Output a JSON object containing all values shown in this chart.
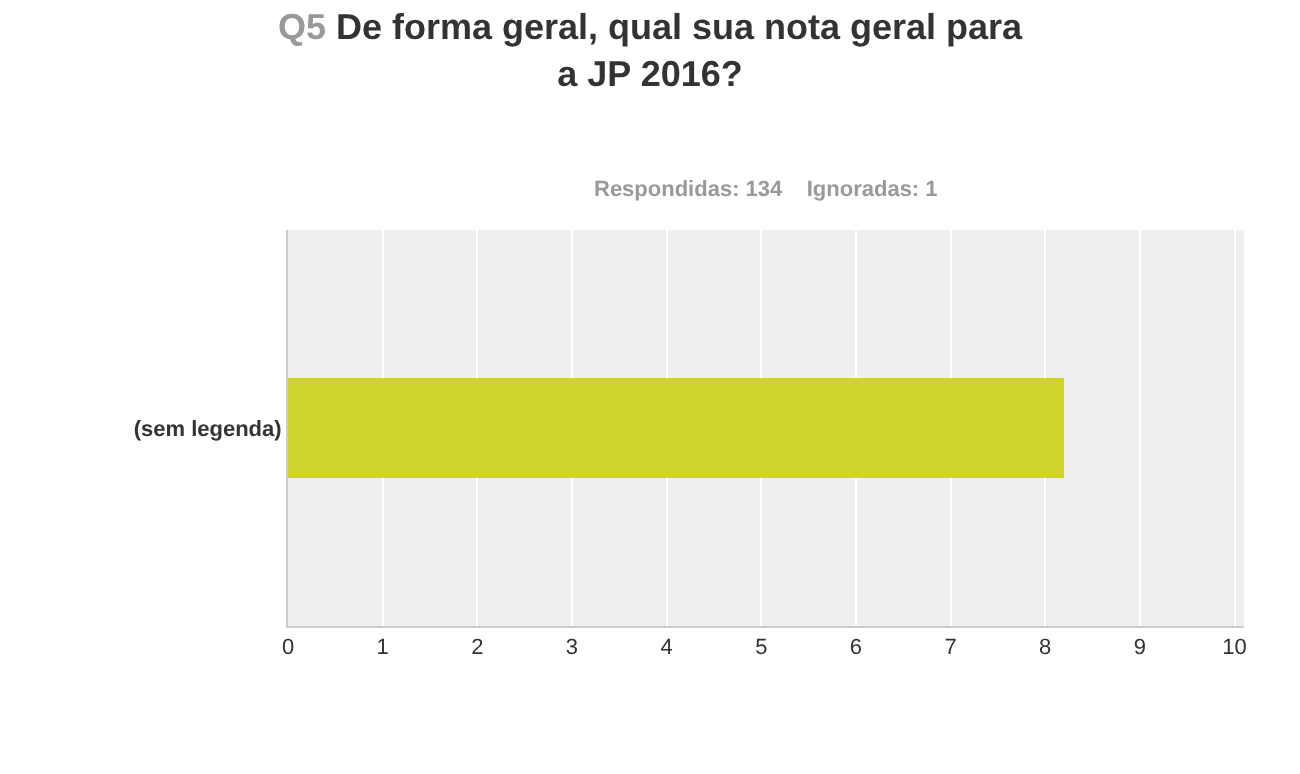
{
  "chart_data": {
    "type": "bar",
    "orientation": "horizontal",
    "title": "Q5 De forma geral, qual sua nota geral para a JP 2016?",
    "subtitle": "Respondidas: 134    Ignoradas: 1",
    "categories": [
      "(sem legenda)"
    ],
    "values": [
      8.2
    ],
    "color": "#d0d42a",
    "xlim": [
      0,
      10.1
    ],
    "xticks": [
      0,
      1,
      2,
      3,
      4,
      5,
      6,
      7,
      8,
      9,
      10
    ],
    "grid": "x",
    "legend": false
  }
}
